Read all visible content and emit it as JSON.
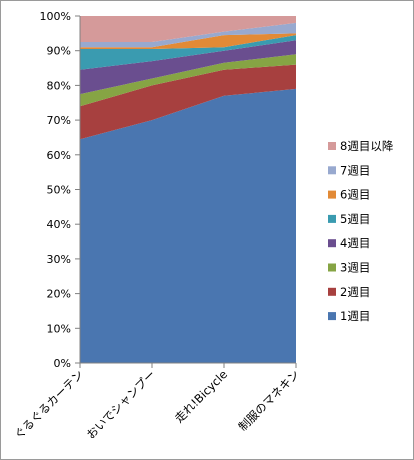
{
  "chart_data": {
    "type": "area",
    "stacked": "percent",
    "categories": [
      "ぐるぐるカーテン",
      "おいでシャンプー",
      "走れ!Bicycle",
      "制服のマネキン"
    ],
    "series": [
      {
        "name": "1週目",
        "color": "#4a76b0",
        "values": [
          64.5,
          70,
          77,
          79
        ]
      },
      {
        "name": "2週目",
        "color": "#a7403f",
        "values": [
          9.5,
          10,
          7.5,
          7
        ]
      },
      {
        "name": "3週目",
        "color": "#86a444",
        "values": [
          3.5,
          2,
          2,
          3
        ]
      },
      {
        "name": "4週目",
        "color": "#6a4e8f",
        "values": [
          7,
          5,
          3.5,
          4
        ]
      },
      {
        "name": "5週目",
        "color": "#3a9bb0",
        "values": [
          6,
          3.5,
          1,
          1.5
        ]
      },
      {
        "name": "6週目",
        "color": "#e28a36",
        "values": [
          0.5,
          0.5,
          3.5,
          0.5
        ]
      },
      {
        "name": "7週目",
        "color": "#98a9cf",
        "values": [
          1.5,
          1.5,
          1,
          3
        ]
      },
      {
        "name": "8週目以降",
        "color": "#d59a9a",
        "values": [
          7.5,
          7.5,
          4.5,
          2
        ]
      }
    ],
    "y_ticks": [
      "0%",
      "10%",
      "20%",
      "30%",
      "40%",
      "50%",
      "60%",
      "70%",
      "80%",
      "90%",
      "100%"
    ],
    "ylim": [
      0,
      100
    ],
    "grid": false,
    "legend_position": "right"
  }
}
